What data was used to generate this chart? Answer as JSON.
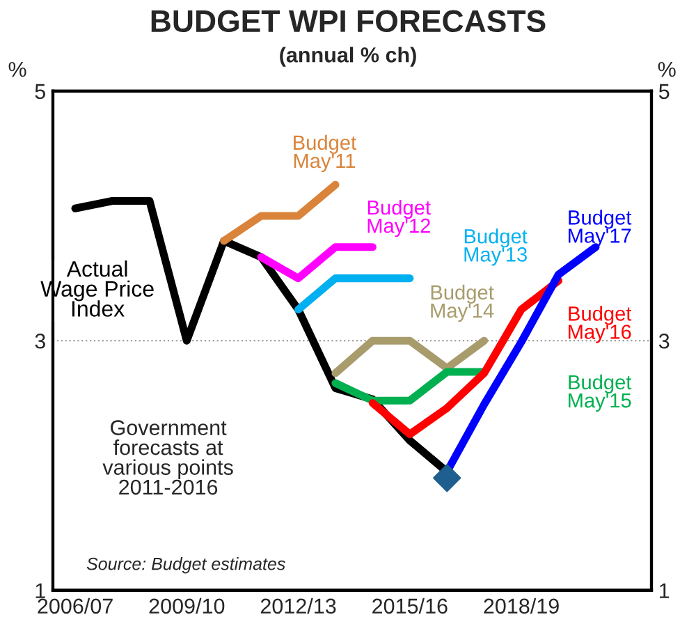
{
  "chart_data": {
    "type": "line",
    "title": "BUDGET WPI FORECASTS",
    "subtitle": "(annual % ch)",
    "ylabel": "%",
    "y2label": "%",
    "categories": [
      "2006/07",
      null,
      null,
      "2009/10",
      null,
      null,
      "2012/13",
      null,
      null,
      "2015/16",
      null,
      null,
      "2018/19",
      null,
      null
    ],
    "ylim": [
      1,
      5
    ],
    "yticks": [
      1,
      3,
      5
    ],
    "y2lim": [
      1,
      5
    ],
    "y2ticks": [
      1,
      3,
      5
    ],
    "grid": false,
    "legend": false,
    "marker": "none",
    "line_style": "solid",
    "ref_lines": [
      {
        "axis": "y",
        "value": 3,
        "color": "#a0a0a0",
        "line_style": "dotted"
      }
    ],
    "series": [
      {
        "name": "Actual\nWage Price\nIndex",
        "color": "#000000",
        "values": [
          4.06,
          4.12,
          4.12,
          3.0,
          3.8,
          3.67,
          3.25,
          2.62,
          2.53,
          2.2,
          1.95,
          null,
          null,
          null,
          null
        ]
      },
      {
        "name": "Budget\nMay'11",
        "color": "#d9843a",
        "values": [
          null,
          null,
          null,
          null,
          3.8,
          4.0,
          4.0,
          4.25,
          null,
          null,
          null,
          null,
          null,
          null,
          null
        ]
      },
      {
        "name": "Budget\nMay'12",
        "color": "#ff00ff",
        "values": [
          null,
          null,
          null,
          null,
          null,
          3.67,
          3.5,
          3.75,
          3.75,
          null,
          null,
          null,
          null,
          null,
          null
        ]
      },
      {
        "name": "Budget\nMay'13",
        "color": "#00b0f0",
        "values": [
          null,
          null,
          null,
          null,
          null,
          null,
          3.25,
          3.5,
          3.5,
          3.5,
          null,
          null,
          null,
          null,
          null
        ]
      },
      {
        "name": "Budget\nMay'14",
        "color": "#a89c6c",
        "values": [
          null,
          null,
          null,
          null,
          null,
          null,
          null,
          2.74,
          3.0,
          3.0,
          2.78,
          3.0,
          null,
          null,
          null
        ]
      },
      {
        "name": "Budget\nMay'15",
        "color": "#00b050",
        "values": [
          null,
          null,
          null,
          null,
          null,
          null,
          null,
          2.66,
          2.52,
          2.52,
          2.75,
          2.75,
          null,
          null,
          null
        ]
      },
      {
        "name": "Budget\nMay'16",
        "color": "#ff0000",
        "values": [
          null,
          null,
          null,
          null,
          null,
          null,
          null,
          null,
          2.5,
          2.25,
          2.46,
          2.74,
          3.25,
          3.48,
          null
        ]
      },
      {
        "name": "Budget\nMay'17",
        "color": "#0000ff",
        "values": [
          null,
          null,
          null,
          null,
          null,
          null,
          null,
          null,
          null,
          null,
          1.95,
          2.49,
          2.99,
          3.53,
          3.75
        ]
      },
      {
        "type": "scatter",
        "marker": "diamond",
        "color": "#1f5f8f",
        "values": [
          null,
          null,
          null,
          null,
          null,
          null,
          null,
          null,
          null,
          null,
          1.9,
          null,
          null,
          null,
          null
        ]
      }
    ],
    "annotations": [
      "Government\nforecasts at\nvarious points\n2011-2016",
      "Source: Budget estimates"
    ]
  }
}
